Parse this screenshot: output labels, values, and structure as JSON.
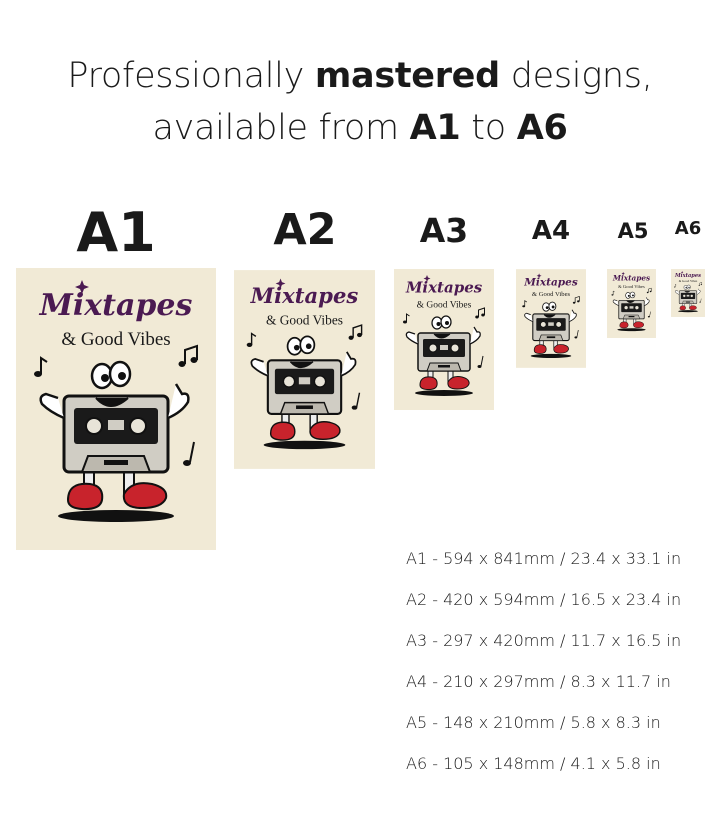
{
  "headline": {
    "line1_pre": "Professionally ",
    "line1_bold": "mastered",
    "line1_post": " designs,",
    "line2_pre": "available from ",
    "line2_bold1": "A1",
    "line2_mid": " to ",
    "line2_bold2": "A6"
  },
  "poster": {
    "title": "Mixtapes",
    "subtitle": "& Good Vibes",
    "background_color": "#f1ead6",
    "title_color": "#4b1a52",
    "accent_color": "#c8232c"
  },
  "sizes": [
    {
      "label": "A1",
      "spec": "A1 - 594 x 841mm  /  23.4 x 33.1 in"
    },
    {
      "label": "A2",
      "spec": "A2  - 420 x 594mm  / 16.5 x 23.4 in"
    },
    {
      "label": "A3",
      "spec": "A3 - 297 x 420mm  /  11.7 x 16.5 in"
    },
    {
      "label": "A4",
      "spec": "A4  - 210 x 297mm  /  8.3 x 11.7 in"
    },
    {
      "label": "A5",
      "spec": "A5 - 148 x 210mm / 5.8 x 8.3 in"
    },
    {
      "label": "A6",
      "spec": "A6 - 105 x 148mm  /  4.1 x 5.8 in"
    }
  ]
}
